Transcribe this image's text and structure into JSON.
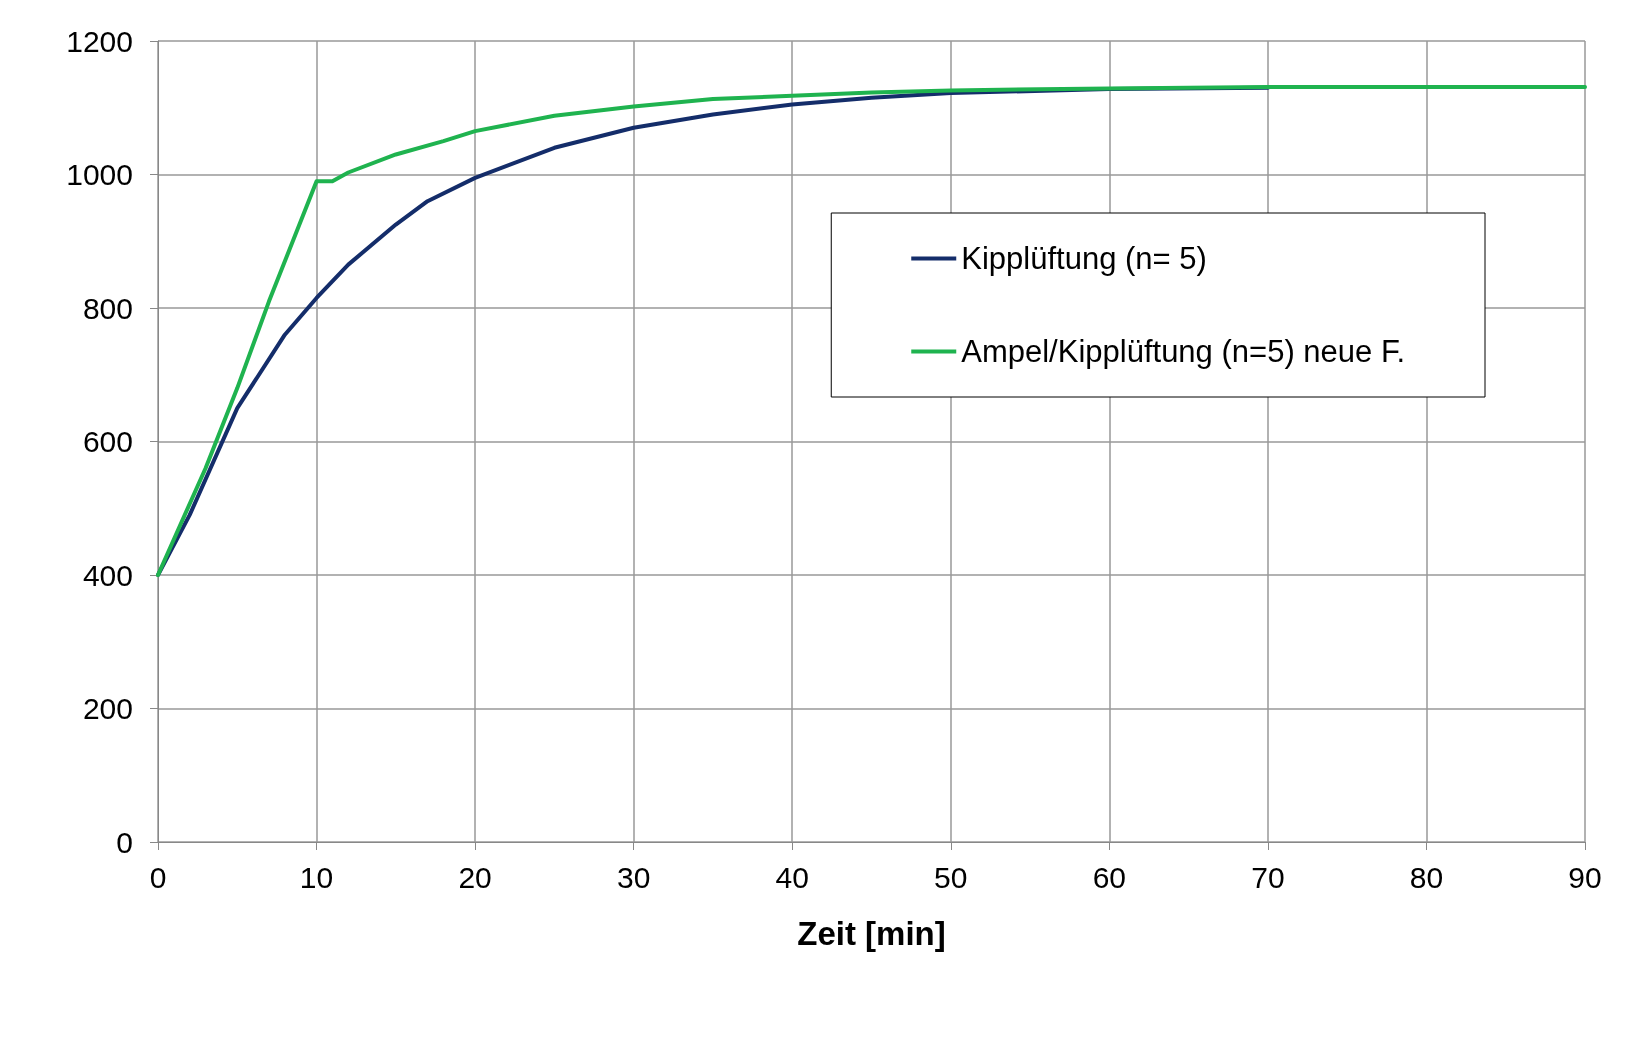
{
  "chart_data": {
    "type": "line",
    "xlabel": "Zeit [min]",
    "xlim": [
      0,
      90
    ],
    "xticks": [
      0,
      10,
      20,
      30,
      40,
      50,
      60,
      70,
      80,
      90
    ],
    "ylim": [
      0,
      1200
    ],
    "yticks": [
      0,
      200,
      400,
      600,
      800,
      1000,
      1200
    ],
    "grid": true,
    "legend": "top right",
    "marker": "none",
    "line_style": "solid",
    "series": [
      {
        "name": "Kipplüftung (n= 5)",
        "color": "#142d6a",
        "x": [
          0,
          2,
          5,
          8,
          10,
          12,
          15,
          17,
          20,
          25,
          30,
          35,
          40,
          45,
          50,
          60,
          70
        ],
        "values": [
          400,
          490,
          650,
          760,
          815,
          865,
          925,
          960,
          995,
          1040,
          1070,
          1090,
          1105,
          1115,
          1122,
          1128,
          1130
        ]
      },
      {
        "name": "Ampel/Kipplüftung (n=5) neue F.",
        "color": "#1fb34f",
        "x": [
          0,
          3,
          5,
          7,
          10,
          11,
          12,
          15,
          18,
          20,
          25,
          30,
          35,
          40,
          45,
          50,
          60,
          70,
          90
        ],
        "values": [
          400,
          560,
          680,
          810,
          990,
          990,
          1003,
          1030,
          1050,
          1065,
          1088,
          1102,
          1113,
          1118,
          1123,
          1126,
          1129,
          1131,
          1131
        ]
      }
    ]
  }
}
